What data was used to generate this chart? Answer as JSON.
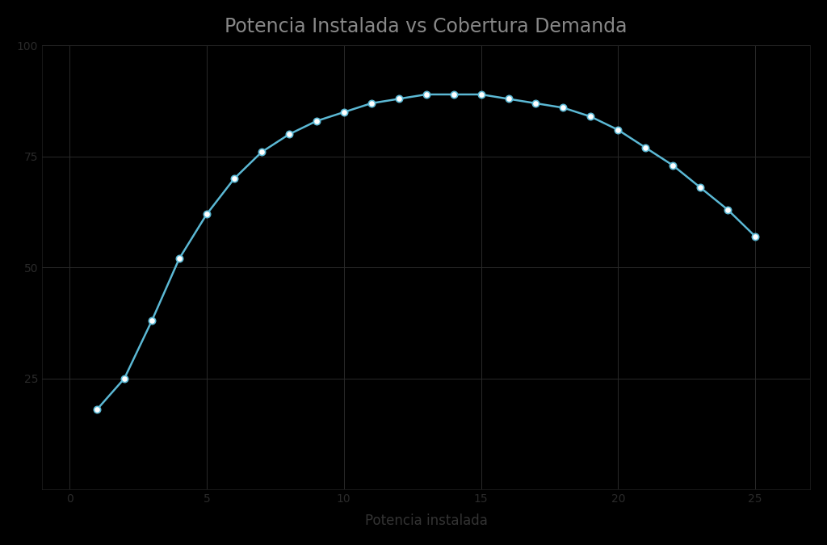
{
  "title": "Potencia Instalada vs Cobertura Demanda",
  "title_color": "#888888",
  "background_color": "#000000",
  "plot_bg_color": "#000000",
  "grid_color": "#2a2a2a",
  "line_color": "#5bb8d4",
  "marker_color": "#ffffff",
  "marker_edge_color": "#5bb8d4",
  "axis_label_color": "#333333",
  "tick_color": "#2a2a2a",
  "spine_color": "#222222",
  "x_values": [
    1,
    2,
    3,
    4,
    5,
    6,
    7,
    8,
    9,
    10,
    11,
    12,
    13,
    14,
    15,
    16,
    17,
    18,
    19,
    20,
    21,
    22,
    23,
    24,
    25
  ],
  "y_values": [
    18,
    25,
    38,
    52,
    62,
    70,
    76,
    80,
    83,
    85,
    87,
    88,
    89,
    89,
    89,
    88,
    87,
    86,
    84,
    81,
    77,
    73,
    68,
    63,
    57
  ],
  "xlabel": "Potencia instalada",
  "ylabel": "",
  "xlim": [
    -1,
    27
  ],
  "ylim": [
    0,
    100
  ],
  "ytick_values": [
    25,
    50,
    75,
    100
  ],
  "xtick_values": [
    0,
    5,
    10,
    15,
    20,
    25
  ],
  "title_fontsize": 17,
  "label_fontsize": 12,
  "tick_fontsize": 10,
  "line_width": 1.8,
  "marker_size": 6
}
